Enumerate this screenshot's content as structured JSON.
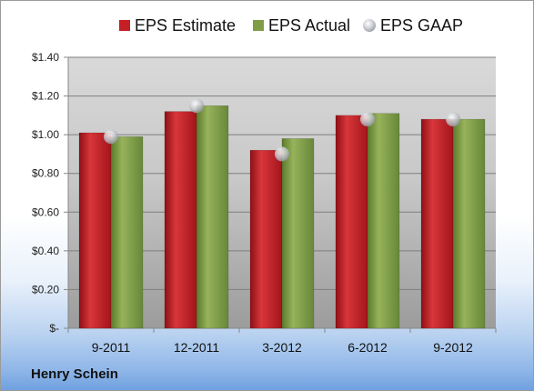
{
  "chart_data": {
    "type": "bar",
    "categories": [
      "9-2011",
      "12-2011",
      "3-2012",
      "6-2012",
      "9-2012"
    ],
    "series": [
      {
        "name": "EPS Estimate",
        "values": [
          1.01,
          1.12,
          0.92,
          1.1,
          1.08
        ],
        "color": "#c41f25"
      },
      {
        "name": "EPS Actual",
        "values": [
          0.99,
          1.15,
          0.98,
          1.11,
          1.08
        ],
        "color": "#7f9d45"
      },
      {
        "name": "EPS GAAP",
        "values": [
          0.99,
          1.15,
          0.9,
          1.08,
          1.08
        ],
        "color": "#b8bcc4",
        "marker": "circle"
      }
    ],
    "y_ticks": [
      {
        "value": 0,
        "label": "$-"
      },
      {
        "value": 0.2,
        "label": "$0.20"
      },
      {
        "value": 0.4,
        "label": "$0.40"
      },
      {
        "value": 0.6,
        "label": "$0.60"
      },
      {
        "value": 0.8,
        "label": "$0.80"
      },
      {
        "value": 1.0,
        "label": "$1.00"
      },
      {
        "value": 1.2,
        "label": "$1.20"
      },
      {
        "value": 1.4,
        "label": "$1.40"
      }
    ],
    "ylim": [
      0,
      1.4
    ],
    "grid": true,
    "legend_position": "top"
  },
  "company": "Henry Schein"
}
